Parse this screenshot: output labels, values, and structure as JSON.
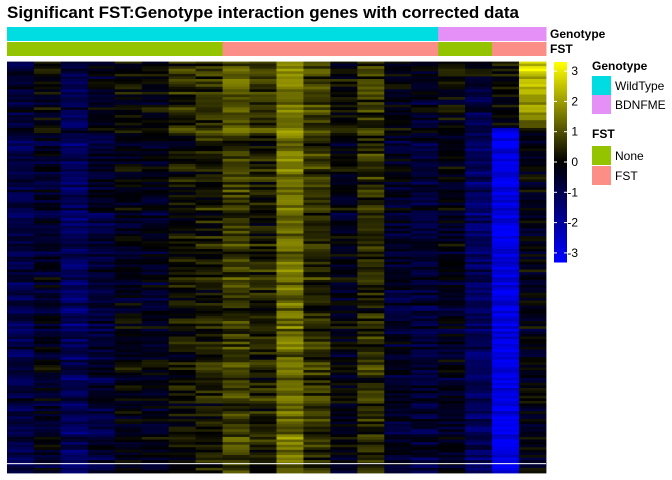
{
  "chart_data": {
    "type": "heatmap",
    "title": "Significant FST:Genotype interaction genes with corrected data",
    "n_samples": 20,
    "annotations": [
      {
        "name": "Genotype",
        "values": [
          "WildType",
          "WildType",
          "WildType",
          "WildType",
          "WildType",
          "WildType",
          "WildType",
          "WildType",
          "WildType",
          "WildType",
          "WildType",
          "WildType",
          "WildType",
          "WildType",
          "WildType",
          "WildType",
          "BDNFME",
          "BDNFME",
          "BDNFME",
          "BDNFME"
        ]
      },
      {
        "name": "FST",
        "values": [
          "None",
          "None",
          "None",
          "None",
          "None",
          "None",
          "None",
          "None",
          "FST",
          "FST",
          "FST",
          "FST",
          "FST",
          "FST",
          "FST",
          "FST",
          "None",
          "None",
          "FST",
          "FST"
        ]
      }
    ],
    "column_profile": [
      -0.9,
      -0.4,
      -1.2,
      -0.6,
      -0.2,
      -0.3,
      0.2,
      0.3,
      0.8,
      0.4,
      1.4,
      0.6,
      -0.2,
      0.5,
      -0.5,
      -0.7,
      -0.3,
      -1.2,
      -2.8,
      -0.1
    ],
    "color_scale": {
      "min": -3.3,
      "max": 3.3,
      "ticks": [
        3,
        2,
        1,
        0,
        -1,
        -2,
        -3
      ],
      "tick_labels": [
        "3",
        "2",
        "1",
        "0",
        "-1",
        "-2",
        "-3"
      ],
      "colors": [
        "#0000ff",
        "#000000",
        "#ffff00"
      ]
    },
    "legend": {
      "position": "right",
      "groups": [
        {
          "title": "Genotype",
          "items": [
            {
              "label": "WildType",
              "color": "#00dde2"
            },
            {
              "label": "BDNFME",
              "color": "#e590f7"
            }
          ]
        },
        {
          "title": "FST",
          "items": [
            {
              "label": "None",
              "color": "#94c400"
            },
            {
              "label": "FST",
              "color": "#fb8f87"
            }
          ]
        }
      ]
    }
  }
}
